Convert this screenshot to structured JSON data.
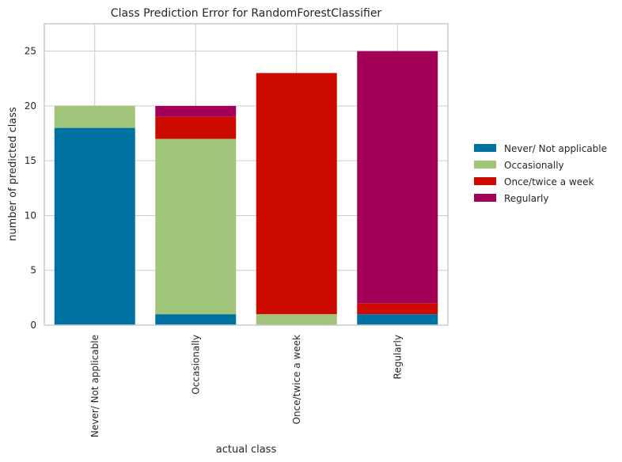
{
  "chart_data": {
    "type": "bar",
    "stacked": true,
    "title": "Class Prediction Error for RandomForestClassifier",
    "xlabel": "actual class",
    "ylabel": "number of predicted class",
    "categories": [
      "Never/ Not applicable",
      "Occasionally",
      "Once/twice a week",
      "Regularly"
    ],
    "ylim": [
      0,
      27.5
    ],
    "yticks": [
      0,
      5,
      10,
      15,
      20,
      25
    ],
    "grid": true,
    "legend_position": "right",
    "series": [
      {
        "name": "Never/ Not applicable",
        "color": "#0072a2",
        "values": [
          18,
          1,
          0,
          1
        ]
      },
      {
        "name": "Occasionally",
        "color": "#a0c47a",
        "values": [
          2,
          16,
          1,
          0
        ]
      },
      {
        "name": "Once/twice a week",
        "color": "#cc0a00",
        "values": [
          0,
          2,
          22,
          1
        ]
      },
      {
        "name": "Regularly",
        "color": "#a30057",
        "values": [
          0,
          1,
          0,
          23
        ]
      }
    ]
  }
}
